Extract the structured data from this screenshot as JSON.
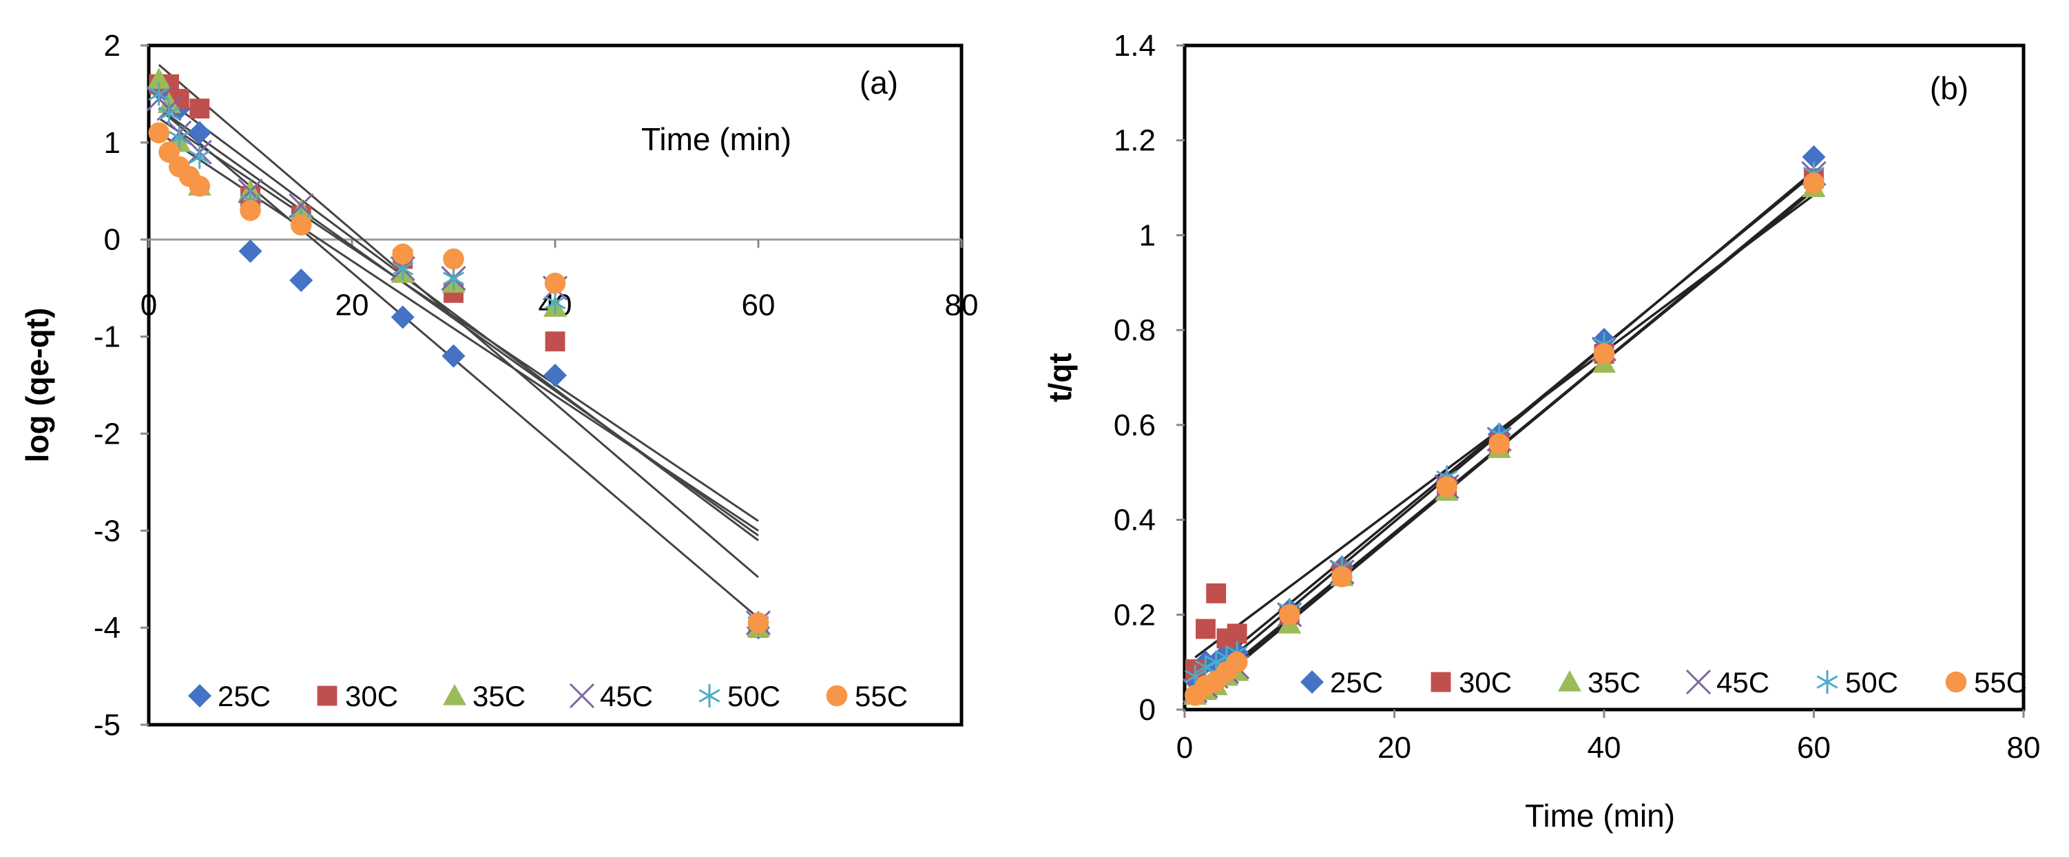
{
  "chart_data": [
    {
      "type": "scatter",
      "panel_label": "(a)",
      "ylabel": "log (qe-qt)",
      "xlabel": "Time (min)",
      "xlim": [
        0,
        80
      ],
      "ylim": [
        -5,
        2
      ],
      "x_ticks": [
        0,
        20,
        40,
        60,
        80
      ],
      "y_ticks": [
        -5,
        -4,
        -3,
        -2,
        -1,
        0,
        1,
        2
      ],
      "grid": false,
      "legend_position": "bottom-left",
      "series": [
        {
          "name": "25C",
          "marker": "diamond",
          "color": "#4472C4",
          "x": [
            1,
            2,
            3,
            5,
            10,
            15,
            25,
            30,
            40,
            60
          ],
          "y": [
            1.55,
            1.5,
            1.35,
            1.1,
            -0.12,
            -0.42,
            -0.8,
            -1.2,
            -1.4,
            -4.0
          ],
          "fit": {
            "x": [
              1,
              60
            ],
            "y": [
              1.35,
              -3.9
            ]
          }
        },
        {
          "name": "30C",
          "marker": "square",
          "color": "#C0504D",
          "x": [
            1,
            2,
            3,
            5,
            10,
            15,
            25,
            30,
            40,
            60
          ],
          "y": [
            1.6,
            1.6,
            1.45,
            1.35,
            0.45,
            0.25,
            -0.2,
            -0.55,
            -1.05,
            -4.0
          ],
          "fit": {
            "x": [
              1,
              60
            ],
            "y": [
              1.8,
              -3.48
            ]
          }
        },
        {
          "name": "35C",
          "marker": "triangle",
          "color": "#9BBB59",
          "x": [
            1,
            2,
            3,
            5,
            10,
            15,
            25,
            30,
            40,
            60
          ],
          "y": [
            1.65,
            1.4,
            1.0,
            0.55,
            0.5,
            0.3,
            -0.35,
            -0.45,
            -0.7,
            -4.0
          ],
          "fit": {
            "x": [
              1,
              60
            ],
            "y": [
              1.35,
              -3.05
            ]
          }
        },
        {
          "name": "45C",
          "marker": "x",
          "color": "#8064A2",
          "x": [
            1,
            2,
            3,
            5,
            10,
            15,
            25,
            30,
            40,
            60
          ],
          "y": [
            1.45,
            1.35,
            1.1,
            0.9,
            0.5,
            0.35,
            -0.3,
            -0.4,
            -0.5,
            -3.95
          ],
          "fit": {
            "x": [
              1,
              60
            ],
            "y": [
              1.25,
              -2.9
            ]
          }
        },
        {
          "name": "50C",
          "marker": "star",
          "color": "#4BACC6",
          "x": [
            1,
            2,
            3,
            5,
            10,
            15,
            25,
            30,
            40,
            60
          ],
          "y": [
            1.5,
            1.3,
            1.05,
            0.85,
            0.4,
            0.2,
            -0.3,
            -0.4,
            -0.65,
            -3.95
          ],
          "fit": {
            "x": [
              1,
              60
            ],
            "y": [
              1.5,
              -3.1
            ]
          }
        },
        {
          "name": "55C",
          "marker": "circle",
          "color": "#F79646",
          "x": [
            1,
            2,
            3,
            4,
            5,
            10,
            15,
            25,
            30,
            40,
            60
          ],
          "y": [
            1.1,
            0.9,
            0.75,
            0.65,
            0.55,
            0.3,
            0.15,
            -0.15,
            -0.2,
            -0.45,
            -3.95
          ],
          "fit": {
            "x": [
              1,
              60
            ],
            "y": [
              1.1,
              -3.0
            ]
          }
        }
      ]
    },
    {
      "type": "scatter",
      "panel_label": "(b)",
      "ylabel": "t/qt",
      "xlabel": "Time (min)",
      "xlim": [
        0,
        80
      ],
      "ylim": [
        0,
        1.4
      ],
      "x_ticks": [
        0,
        20,
        40,
        60,
        80
      ],
      "y_ticks": [
        0,
        0.2,
        0.4,
        0.6,
        0.8,
        1,
        1.2,
        1.4
      ],
      "grid": false,
      "legend_position": "bottom-right",
      "series": [
        {
          "name": "25C",
          "marker": "diamond",
          "color": "#4472C4",
          "x": [
            1,
            2,
            3,
            4,
            5,
            10,
            15,
            25,
            30,
            40,
            60
          ],
          "y": [
            0.06,
            0.1,
            0.1,
            0.12,
            0.12,
            0.21,
            0.3,
            0.48,
            0.58,
            0.78,
            1.165
          ],
          "fit": {
            "x": [
              1,
              60
            ],
            "y": [
              0.045,
              1.135
            ]
          }
        },
        {
          "name": "30C",
          "marker": "square",
          "color": "#C0504D",
          "x": [
            1,
            2,
            3,
            4,
            5,
            10,
            15,
            25,
            30,
            40,
            60
          ],
          "y": [
            0.085,
            0.17,
            0.245,
            0.15,
            0.16,
            0.2,
            0.29,
            0.47,
            0.56,
            0.75,
            1.12
          ],
          "fit": {
            "x": [
              1,
              60
            ],
            "y": [
              0.11,
              1.085
            ]
          }
        },
        {
          "name": "35C",
          "marker": "triangle",
          "color": "#9BBB59",
          "x": [
            1,
            2,
            3,
            4,
            5,
            10,
            15,
            25,
            30,
            40,
            60
          ],
          "y": [
            0.03,
            0.04,
            0.05,
            0.07,
            0.08,
            0.18,
            0.28,
            0.46,
            0.55,
            0.73,
            1.1
          ],
          "fit": {
            "x": [
              1,
              60
            ],
            "y": [
              0.03,
              1.095
            ]
          }
        },
        {
          "name": "45C",
          "marker": "x",
          "color": "#8064A2",
          "x": [
            1,
            2,
            3,
            4,
            5,
            10,
            15,
            25,
            30,
            40,
            60
          ],
          "y": [
            0.04,
            0.05,
            0.07,
            0.08,
            0.09,
            0.2,
            0.29,
            0.47,
            0.57,
            0.76,
            1.13
          ],
          "fit": {
            "x": [
              1,
              60
            ],
            "y": [
              0.02,
              1.1
            ]
          }
        },
        {
          "name": "50C",
          "marker": "star",
          "color": "#4BACC6",
          "x": [
            1,
            2,
            3,
            4,
            5,
            10,
            15,
            25,
            30,
            40,
            60
          ],
          "y": [
            0.07,
            0.09,
            0.1,
            0.11,
            0.12,
            0.21,
            0.3,
            0.49,
            0.58,
            0.77,
            1.13
          ],
          "fit": {
            "x": [
              1,
              60
            ],
            "y": [
              0.06,
              1.13
            ]
          }
        },
        {
          "name": "55C",
          "marker": "circle",
          "color": "#F79646",
          "x": [
            1,
            2,
            3,
            4,
            5,
            10,
            15,
            25,
            30,
            40,
            60
          ],
          "y": [
            0.03,
            0.05,
            0.06,
            0.08,
            0.1,
            0.2,
            0.28,
            0.47,
            0.56,
            0.75,
            1.11
          ],
          "fit": {
            "x": [
              1,
              60
            ],
            "y": [
              0.025,
              1.1
            ]
          }
        }
      ]
    }
  ]
}
